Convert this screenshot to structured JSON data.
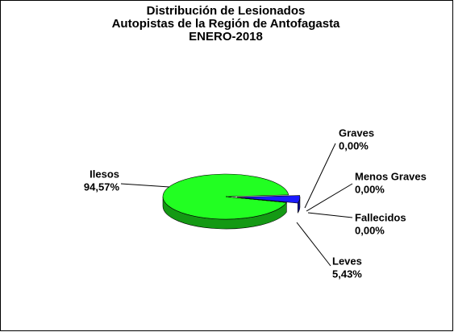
{
  "chart_data": {
    "type": "pie3d",
    "title": [
      "Distribución de Lesionados",
      "Autopistas de la Región de Antofagasta",
      "ENERO-2018"
    ],
    "categories": [
      "Ilesos",
      "Leves",
      "Graves",
      "Menos Graves",
      "Fallecidos"
    ],
    "values": [
      94.57,
      5.43,
      0,
      0,
      0
    ],
    "value_labels": [
      "94,57%",
      "5,43%",
      "0,00%",
      "0,00%",
      "0,00%"
    ],
    "colors": [
      "#22ff22",
      "#1a1aff",
      "#ff2222",
      "#ffff22",
      "#000000"
    ]
  }
}
